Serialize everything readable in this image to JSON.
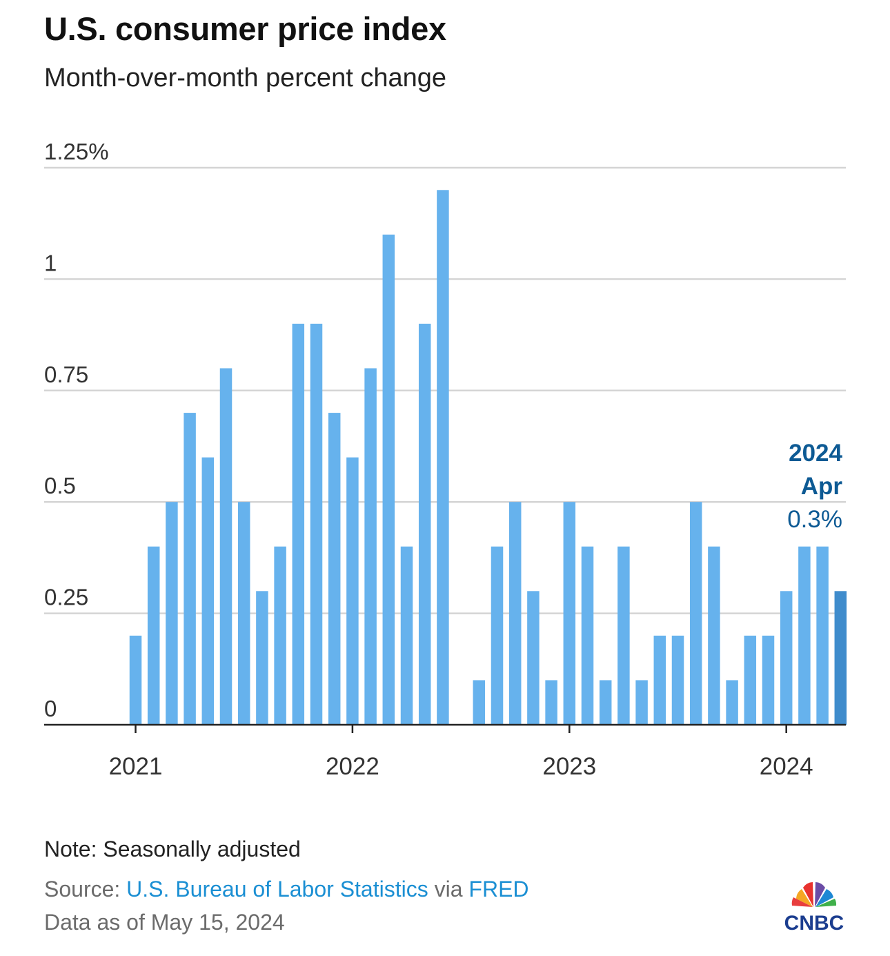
{
  "header": {
    "title": "U.S. consumer price index",
    "subtitle": "Month-over-month percent change"
  },
  "footer": {
    "note": "Note: Seasonally adjusted",
    "source_prefix": "Source: ",
    "source_org": "U.S. Bureau of Labor Statistics",
    "source_via": " via ",
    "source_fred": "FRED",
    "as_of": "Data as of May 15, 2024"
  },
  "logo": {
    "text": "CNBC",
    "icon": "nbc-peacock-icon"
  },
  "chart_data": {
    "type": "bar",
    "ylim": [
      0,
      1.25
    ],
    "y_ticks": [
      {
        "value": 0,
        "label": "0"
      },
      {
        "value": 0.25,
        "label": "0.25"
      },
      {
        "value": 0.5,
        "label": "0.5"
      },
      {
        "value": 0.75,
        "label": "0.75"
      },
      {
        "value": 1,
        "label": "1"
      },
      {
        "value": 1.25,
        "label": "1.25%"
      }
    ],
    "x_ticks": [
      {
        "index": 0,
        "label": "2021"
      },
      {
        "index": 12,
        "label": "2022"
      },
      {
        "index": 24,
        "label": "2023"
      },
      {
        "index": 36,
        "label": "2024"
      }
    ],
    "grid": true,
    "categories": [
      "2021-01",
      "2021-02",
      "2021-03",
      "2021-04",
      "2021-05",
      "2021-06",
      "2021-07",
      "2021-08",
      "2021-09",
      "2021-10",
      "2021-11",
      "2021-12",
      "2022-01",
      "2022-02",
      "2022-03",
      "2022-04",
      "2022-05",
      "2022-06",
      "2022-07",
      "2022-08",
      "2022-09",
      "2022-10",
      "2022-11",
      "2022-12",
      "2023-01",
      "2023-02",
      "2023-03",
      "2023-04",
      "2023-05",
      "2023-06",
      "2023-07",
      "2023-08",
      "2023-09",
      "2023-10",
      "2023-11",
      "2023-12",
      "2024-01",
      "2024-02",
      "2024-03",
      "2024-04"
    ],
    "values": [
      0.2,
      0.4,
      0.5,
      0.7,
      0.6,
      0.8,
      0.5,
      0.3,
      0.4,
      0.9,
      0.9,
      0.7,
      0.6,
      0.8,
      1.1,
      0.4,
      0.9,
      1.2,
      0.0,
      0.1,
      0.4,
      0.5,
      0.3,
      0.1,
      0.5,
      0.4,
      0.1,
      0.4,
      0.1,
      0.2,
      0.2,
      0.5,
      0.4,
      0.1,
      0.2,
      0.2,
      0.3,
      0.4,
      0.4,
      0.3
    ],
    "colors": {
      "bar": "#66b2ed",
      "highlight": "#3f8ccc",
      "annotation": "#0d5a94",
      "grid": "#d4d4d4",
      "axis": "#222222"
    },
    "annotation": {
      "year": "2024",
      "month": "Apr",
      "value": "0.3%"
    }
  }
}
